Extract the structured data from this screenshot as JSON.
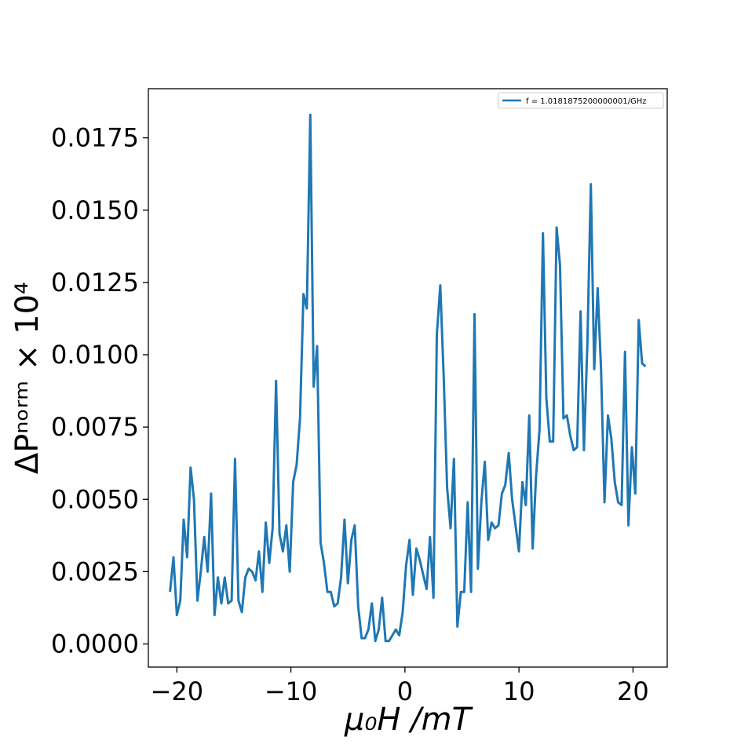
{
  "colors": {
    "series": "#1f77b4",
    "axes": "#000000",
    "background": "#ffffff"
  },
  "chart_data": {
    "type": "line",
    "xlabel": "μ₀H /mT",
    "ylabel": "ΔPⁿᵒʳᵐ × 10⁴",
    "xlim": [
      -22.5,
      23.0
    ],
    "ylim": [
      -0.0008,
      0.0192
    ],
    "xticks": [
      -20,
      -10,
      0,
      10,
      20
    ],
    "xtick_labels": [
      "−20",
      "−10",
      "0",
      "10",
      "20"
    ],
    "yticks": [
      0.0,
      0.0025,
      0.005,
      0.0075,
      0.01,
      0.0125,
      0.015,
      0.0175
    ],
    "ytick_labels": [
      "0.0000",
      "0.0025",
      "0.0050",
      "0.0075",
      "0.0100",
      "0.0125",
      "0.0150",
      "0.0175"
    ],
    "grid": false,
    "legend_position": "top-right",
    "series": [
      {
        "name": "f = 1.0181875200000001/GHz",
        "color": "#1f77b4",
        "x": [
          -20.6,
          -20.3,
          -20.0,
          -19.7,
          -19.4,
          -19.1,
          -18.8,
          -18.5,
          -18.2,
          -17.9,
          -17.6,
          -17.3,
          -17.0,
          -16.7,
          -16.4,
          -16.1,
          -15.8,
          -15.5,
          -15.2,
          -14.9,
          -14.6,
          -14.3,
          -14.0,
          -13.7,
          -13.4,
          -13.1,
          -12.8,
          -12.5,
          -12.2,
          -11.9,
          -11.6,
          -11.3,
          -11.0,
          -10.7,
          -10.4,
          -10.1,
          -9.8,
          -9.5,
          -9.2,
          -8.9,
          -8.6,
          -8.3,
          -8.0,
          -7.7,
          -7.4,
          -7.1,
          -6.8,
          -6.5,
          -6.2,
          -5.9,
          -5.6,
          -5.3,
          -5.0,
          -4.7,
          -4.4,
          -4.1,
          -3.8,
          -3.5,
          -3.2,
          -2.9,
          -2.6,
          -2.3,
          -2.0,
          -1.7,
          -1.4,
          -1.1,
          -0.8,
          -0.5,
          -0.2,
          0.1,
          0.4,
          0.7,
          1.0,
          1.3,
          1.6,
          1.9,
          2.2,
          2.5,
          2.8,
          3.1,
          3.4,
          3.7,
          4.0,
          4.3,
          4.6,
          4.9,
          5.2,
          5.5,
          5.8,
          6.1,
          6.4,
          6.7,
          7.0,
          7.3,
          7.6,
          7.9,
          8.2,
          8.5,
          8.8,
          9.1,
          9.4,
          9.7,
          10.0,
          10.3,
          10.6,
          10.9,
          11.2,
          11.5,
          11.8,
          12.1,
          12.4,
          12.7,
          13.0,
          13.3,
          13.6,
          13.9,
          14.2,
          14.5,
          14.8,
          15.1,
          15.4,
          15.7,
          16.0,
          16.3,
          16.6,
          16.9,
          17.2,
          17.5,
          17.8,
          18.1,
          18.4,
          18.7,
          19.0,
          19.3,
          19.6,
          19.9,
          20.2,
          20.5,
          20.8,
          21.1
        ],
        "y": [
          0.0018,
          0.003,
          0.001,
          0.0015,
          0.0043,
          0.003,
          0.0061,
          0.005,
          0.0015,
          0.0025,
          0.0037,
          0.0025,
          0.0052,
          0.001,
          0.0023,
          0.0014,
          0.0023,
          0.0014,
          0.0015,
          0.0064,
          0.0015,
          0.0011,
          0.0023,
          0.0026,
          0.0025,
          0.0022,
          0.0032,
          0.0018,
          0.0042,
          0.0028,
          0.004,
          0.0091,
          0.0038,
          0.0032,
          0.0041,
          0.0025,
          0.0056,
          0.0062,
          0.0078,
          0.0121,
          0.0116,
          0.0183,
          0.0089,
          0.0103,
          0.0035,
          0.0028,
          0.0018,
          0.0018,
          0.0013,
          0.0014,
          0.0023,
          0.0043,
          0.0021,
          0.0036,
          0.0041,
          0.0013,
          0.0002,
          0.0002,
          0.0005,
          0.0014,
          0.0001,
          0.0005,
          0.0016,
          0.0001,
          0.0001,
          0.0003,
          0.0005,
          0.0003,
          0.0011,
          0.0027,
          0.0036,
          0.0017,
          0.0033,
          0.0029,
          0.0024,
          0.0019,
          0.0037,
          0.0016,
          0.0107,
          0.0124,
          0.0092,
          0.0054,
          0.004,
          0.0064,
          0.0006,
          0.0018,
          0.0018,
          0.0049,
          0.0018,
          0.0114,
          0.0026,
          0.0049,
          0.0063,
          0.0036,
          0.0042,
          0.004,
          0.0041,
          0.0052,
          0.0055,
          0.0066,
          0.005,
          0.0041,
          0.0032,
          0.0056,
          0.0048,
          0.0079,
          0.0033,
          0.0058,
          0.0074,
          0.0142,
          0.0085,
          0.007,
          0.007,
          0.0144,
          0.0131,
          0.0078,
          0.0079,
          0.0072,
          0.0067,
          0.0068,
          0.0115,
          0.0067,
          0.0104,
          0.0159,
          0.0095,
          0.0123,
          0.0095,
          0.0049,
          0.0079,
          0.0071,
          0.0056,
          0.0049,
          0.0048,
          0.0101,
          0.0041,
          0.0068,
          0.0052,
          0.0112,
          0.0097,
          0.0096
        ]
      }
    ]
  }
}
